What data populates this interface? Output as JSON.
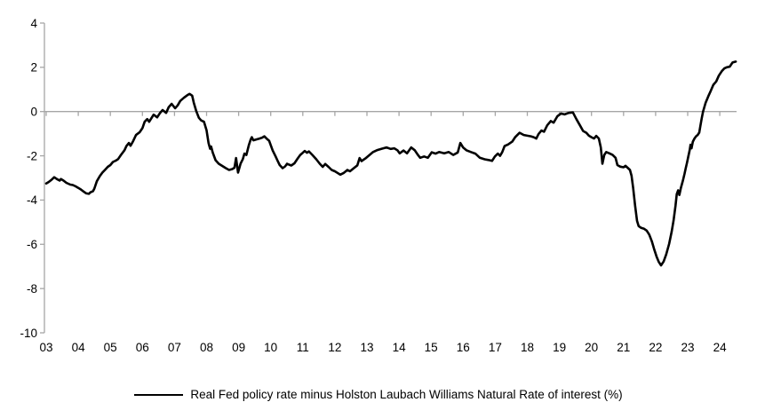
{
  "chart_data": {
    "type": "line",
    "title": "",
    "legend": {
      "position": "bottom",
      "label": "Real Fed policy rate minus Holston Laubach Williams Natural Rate of interest (%)"
    },
    "colors": {
      "line": "#000000",
      "axis": "#a6a6a6",
      "text": "#000000",
      "background": "#ffffff"
    },
    "grid": "zero-line-only",
    "y_axis": {
      "ticks": [
        4,
        2,
        0,
        -2,
        -4,
        -6,
        -8,
        -10
      ],
      "range": [
        -10,
        4
      ]
    },
    "x_axis": {
      "tick_labels": [
        "03",
        "04",
        "05",
        "06",
        "07",
        "08",
        "09",
        "10",
        "11",
        "12",
        "13",
        "14",
        "15",
        "16",
        "17",
        "18",
        "19",
        "20",
        "21",
        "22",
        "23",
        "24"
      ],
      "tick_years": [
        2003,
        2004,
        2005,
        2006,
        2007,
        2008,
        2009,
        2010,
        2011,
        2012,
        2013,
        2014,
        2015,
        2016,
        2017,
        2018,
        2019,
        2020,
        2021,
        2022,
        2023,
        2024
      ],
      "range": [
        2003,
        2024.55
      ]
    },
    "series": [
      {
        "name": "Real Fed policy rate minus Holston Laubach Williams Natural Rate of interest (%)",
        "points": [
          [
            2003.0,
            -3.25
          ],
          [
            2003.08,
            -3.18
          ],
          [
            2003.17,
            -3.08
          ],
          [
            2003.25,
            -2.97
          ],
          [
            2003.33,
            -3.05
          ],
          [
            2003.42,
            -3.12
          ],
          [
            2003.46,
            -3.05
          ],
          [
            2003.54,
            -3.12
          ],
          [
            2003.63,
            -3.22
          ],
          [
            2003.75,
            -3.3
          ],
          [
            2003.83,
            -3.32
          ],
          [
            2003.92,
            -3.38
          ],
          [
            2004.0,
            -3.45
          ],
          [
            2004.08,
            -3.52
          ],
          [
            2004.17,
            -3.62
          ],
          [
            2004.25,
            -3.7
          ],
          [
            2004.33,
            -3.72
          ],
          [
            2004.38,
            -3.65
          ],
          [
            2004.46,
            -3.6
          ],
          [
            2004.5,
            -3.48
          ],
          [
            2004.58,
            -3.15
          ],
          [
            2004.67,
            -2.92
          ],
          [
            2004.75,
            -2.76
          ],
          [
            2004.83,
            -2.64
          ],
          [
            2004.92,
            -2.5
          ],
          [
            2005.0,
            -2.42
          ],
          [
            2005.08,
            -2.28
          ],
          [
            2005.17,
            -2.22
          ],
          [
            2005.24,
            -2.15
          ],
          [
            2005.33,
            -1.96
          ],
          [
            2005.44,
            -1.75
          ],
          [
            2005.5,
            -1.56
          ],
          [
            2005.58,
            -1.42
          ],
          [
            2005.63,
            -1.55
          ],
          [
            2005.71,
            -1.34
          ],
          [
            2005.8,
            -1.06
          ],
          [
            2005.91,
            -0.94
          ],
          [
            2006.0,
            -0.75
          ],
          [
            2006.07,
            -0.46
          ],
          [
            2006.15,
            -0.34
          ],
          [
            2006.21,
            -0.46
          ],
          [
            2006.28,
            -0.3
          ],
          [
            2006.35,
            -0.14
          ],
          [
            2006.46,
            -0.26
          ],
          [
            2006.55,
            -0.06
          ],
          [
            2006.63,
            0.07
          ],
          [
            2006.74,
            -0.06
          ],
          [
            2006.82,
            0.2
          ],
          [
            2006.91,
            0.35
          ],
          [
            2007.02,
            0.15
          ],
          [
            2007.1,
            0.28
          ],
          [
            2007.18,
            0.48
          ],
          [
            2007.29,
            0.62
          ],
          [
            2007.4,
            0.74
          ],
          [
            2007.47,
            0.8
          ],
          [
            2007.55,
            0.72
          ],
          [
            2007.6,
            0.4
          ],
          [
            2007.68,
            0.02
          ],
          [
            2007.76,
            -0.28
          ],
          [
            2007.83,
            -0.4
          ],
          [
            2007.92,
            -0.46
          ],
          [
            2008.0,
            -0.85
          ],
          [
            2008.06,
            -1.42
          ],
          [
            2008.11,
            -1.68
          ],
          [
            2008.14,
            -1.58
          ],
          [
            2008.19,
            -1.85
          ],
          [
            2008.28,
            -2.2
          ],
          [
            2008.38,
            -2.36
          ],
          [
            2008.49,
            -2.46
          ],
          [
            2008.6,
            -2.56
          ],
          [
            2008.7,
            -2.64
          ],
          [
            2008.8,
            -2.6
          ],
          [
            2008.87,
            -2.54
          ],
          [
            2008.92,
            -2.1
          ],
          [
            2008.98,
            -2.76
          ],
          [
            2009.06,
            -2.35
          ],
          [
            2009.13,
            -2.15
          ],
          [
            2009.18,
            -1.9
          ],
          [
            2009.24,
            -1.96
          ],
          [
            2009.32,
            -1.5
          ],
          [
            2009.37,
            -1.28
          ],
          [
            2009.41,
            -1.16
          ],
          [
            2009.46,
            -1.3
          ],
          [
            2009.55,
            -1.26
          ],
          [
            2009.65,
            -1.22
          ],
          [
            2009.73,
            -1.18
          ],
          [
            2009.8,
            -1.12
          ],
          [
            2009.87,
            -1.22
          ],
          [
            2009.95,
            -1.32
          ],
          [
            2010.06,
            -1.76
          ],
          [
            2010.15,
            -2.02
          ],
          [
            2010.22,
            -2.24
          ],
          [
            2010.28,
            -2.42
          ],
          [
            2010.37,
            -2.56
          ],
          [
            2010.45,
            -2.48
          ],
          [
            2010.51,
            -2.36
          ],
          [
            2010.57,
            -2.4
          ],
          [
            2010.64,
            -2.44
          ],
          [
            2010.74,
            -2.34
          ],
          [
            2010.84,
            -2.12
          ],
          [
            2010.92,
            -1.96
          ],
          [
            2011.0,
            -1.86
          ],
          [
            2011.06,
            -1.78
          ],
          [
            2011.13,
            -1.86
          ],
          [
            2011.19,
            -1.8
          ],
          [
            2011.3,
            -1.96
          ],
          [
            2011.42,
            -2.16
          ],
          [
            2011.53,
            -2.36
          ],
          [
            2011.62,
            -2.5
          ],
          [
            2011.7,
            -2.37
          ],
          [
            2011.8,
            -2.5
          ],
          [
            2011.9,
            -2.64
          ],
          [
            2012.0,
            -2.7
          ],
          [
            2012.08,
            -2.77
          ],
          [
            2012.17,
            -2.85
          ],
          [
            2012.28,
            -2.77
          ],
          [
            2012.39,
            -2.64
          ],
          [
            2012.47,
            -2.7
          ],
          [
            2012.59,
            -2.56
          ],
          [
            2012.7,
            -2.43
          ],
          [
            2012.77,
            -2.1
          ],
          [
            2012.83,
            -2.24
          ],
          [
            2012.95,
            -2.12
          ],
          [
            2013.08,
            -1.96
          ],
          [
            2013.19,
            -1.83
          ],
          [
            2013.31,
            -1.75
          ],
          [
            2013.45,
            -1.69
          ],
          [
            2013.61,
            -1.62
          ],
          [
            2013.74,
            -1.69
          ],
          [
            2013.85,
            -1.66
          ],
          [
            2013.95,
            -1.75
          ],
          [
            2014.02,
            -1.89
          ],
          [
            2014.14,
            -1.76
          ],
          [
            2014.25,
            -1.89
          ],
          [
            2014.38,
            -1.62
          ],
          [
            2014.49,
            -1.75
          ],
          [
            2014.59,
            -1.96
          ],
          [
            2014.66,
            -2.09
          ],
          [
            2014.78,
            -2.03
          ],
          [
            2014.9,
            -2.09
          ],
          [
            2015.02,
            -1.84
          ],
          [
            2015.14,
            -1.9
          ],
          [
            2015.25,
            -1.83
          ],
          [
            2015.41,
            -1.89
          ],
          [
            2015.55,
            -1.83
          ],
          [
            2015.69,
            -1.96
          ],
          [
            2015.83,
            -1.85
          ],
          [
            2015.91,
            -1.42
          ],
          [
            2016.0,
            -1.63
          ],
          [
            2016.1,
            -1.75
          ],
          [
            2016.24,
            -1.83
          ],
          [
            2016.38,
            -1.9
          ],
          [
            2016.52,
            -2.09
          ],
          [
            2016.67,
            -2.16
          ],
          [
            2016.79,
            -2.19
          ],
          [
            2016.9,
            -2.23
          ],
          [
            2016.99,
            -2.03
          ],
          [
            2017.08,
            -1.9
          ],
          [
            2017.15,
            -2.0
          ],
          [
            2017.22,
            -1.83
          ],
          [
            2017.29,
            -1.56
          ],
          [
            2017.4,
            -1.49
          ],
          [
            2017.53,
            -1.36
          ],
          [
            2017.62,
            -1.16
          ],
          [
            2017.76,
            -0.96
          ],
          [
            2017.89,
            -1.06
          ],
          [
            2018.0,
            -1.09
          ],
          [
            2018.11,
            -1.12
          ],
          [
            2018.2,
            -1.16
          ],
          [
            2018.28,
            -1.22
          ],
          [
            2018.35,
            -1.02
          ],
          [
            2018.44,
            -0.86
          ],
          [
            2018.52,
            -0.91
          ],
          [
            2018.62,
            -0.62
          ],
          [
            2018.73,
            -0.43
          ],
          [
            2018.82,
            -0.5
          ],
          [
            2018.94,
            -0.21
          ],
          [
            2019.05,
            -0.09
          ],
          [
            2019.16,
            -0.13
          ],
          [
            2019.29,
            -0.06
          ],
          [
            2019.42,
            -0.04
          ],
          [
            2019.53,
            -0.34
          ],
          [
            2019.64,
            -0.62
          ],
          [
            2019.74,
            -0.88
          ],
          [
            2019.84,
            -0.96
          ],
          [
            2019.92,
            -1.09
          ],
          [
            2020.0,
            -1.16
          ],
          [
            2020.08,
            -1.22
          ],
          [
            2020.15,
            -1.1
          ],
          [
            2020.23,
            -1.22
          ],
          [
            2020.29,
            -1.62
          ],
          [
            2020.34,
            -2.36
          ],
          [
            2020.4,
            -1.96
          ],
          [
            2020.46,
            -1.83
          ],
          [
            2020.56,
            -1.89
          ],
          [
            2020.66,
            -1.96
          ],
          [
            2020.75,
            -2.09
          ],
          [
            2020.81,
            -2.42
          ],
          [
            2020.9,
            -2.49
          ],
          [
            2021.0,
            -2.52
          ],
          [
            2021.06,
            -2.45
          ],
          [
            2021.14,
            -2.56
          ],
          [
            2021.2,
            -2.64
          ],
          [
            2021.25,
            -2.9
          ],
          [
            2021.3,
            -3.45
          ],
          [
            2021.36,
            -4.25
          ],
          [
            2021.42,
            -4.94
          ],
          [
            2021.47,
            -5.18
          ],
          [
            2021.55,
            -5.26
          ],
          [
            2021.64,
            -5.3
          ],
          [
            2021.72,
            -5.38
          ],
          [
            2021.8,
            -5.56
          ],
          [
            2021.88,
            -5.86
          ],
          [
            2021.95,
            -6.2
          ],
          [
            2022.03,
            -6.56
          ],
          [
            2022.1,
            -6.8
          ],
          [
            2022.17,
            -6.95
          ],
          [
            2022.25,
            -6.78
          ],
          [
            2022.33,
            -6.46
          ],
          [
            2022.42,
            -5.98
          ],
          [
            2022.5,
            -5.42
          ],
          [
            2022.56,
            -4.92
          ],
          [
            2022.62,
            -4.25
          ],
          [
            2022.66,
            -3.73
          ],
          [
            2022.7,
            -3.56
          ],
          [
            2022.74,
            -3.77
          ],
          [
            2022.79,
            -3.44
          ],
          [
            2022.85,
            -3.12
          ],
          [
            2022.9,
            -2.82
          ],
          [
            2022.94,
            -2.56
          ],
          [
            2022.98,
            -2.3
          ],
          [
            2023.02,
            -2.03
          ],
          [
            2023.06,
            -1.75
          ],
          [
            2023.09,
            -1.5
          ],
          [
            2023.12,
            -1.66
          ],
          [
            2023.16,
            -1.36
          ],
          [
            2023.21,
            -1.22
          ],
          [
            2023.26,
            -1.12
          ],
          [
            2023.31,
            -1.06
          ],
          [
            2023.36,
            -0.95
          ],
          [
            2023.4,
            -0.62
          ],
          [
            2023.44,
            -0.28
          ],
          [
            2023.48,
            0.0
          ],
          [
            2023.56,
            0.4
          ],
          [
            2023.64,
            0.68
          ],
          [
            2023.72,
            0.94
          ],
          [
            2023.8,
            1.21
          ],
          [
            2023.89,
            1.36
          ],
          [
            2023.97,
            1.62
          ],
          [
            2024.06,
            1.82
          ],
          [
            2024.14,
            1.95
          ],
          [
            2024.22,
            2.0
          ],
          [
            2024.31,
            2.03
          ],
          [
            2024.4,
            2.22
          ],
          [
            2024.5,
            2.26
          ]
        ]
      }
    ]
  }
}
